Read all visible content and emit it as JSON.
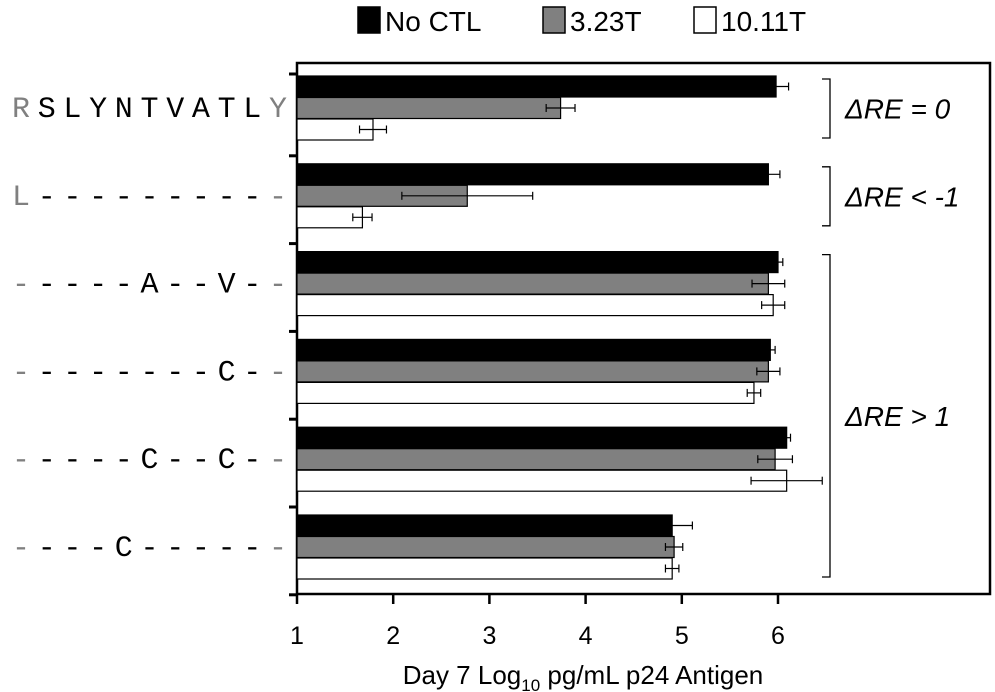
{
  "chart_data": {
    "type": "bar",
    "orientation": "horizontal",
    "xlabel": {
      "prefix": "Day 7 Log",
      "sub": "10",
      "suffix": " pg/mL p24 Antigen"
    },
    "xlim": [
      1,
      8
    ],
    "xticks": [
      "1",
      "2",
      "3",
      "4",
      "5",
      "6"
    ],
    "grid": false,
    "legend_position": "top",
    "series": [
      {
        "name": "No CTL",
        "color": "#000000"
      },
      {
        "name": "3.23T",
        "color": "#808080"
      },
      {
        "name": "10.11T",
        "color": "#ffffff"
      }
    ],
    "categories": [
      {
        "label": [
          {
            "text": "R",
            "color": "#808080"
          },
          {
            "text": "SLYNTVATL",
            "color": "#000000"
          },
          {
            "text": "Y",
            "color": "#808080"
          }
        ],
        "values": [
          5.98,
          3.74,
          1.79
        ],
        "errors": [
          0.13,
          0.15,
          0.14
        ]
      },
      {
        "label": [
          {
            "text": "L",
            "color": "#808080"
          },
          {
            "text": "---------",
            "color": "#000000"
          },
          {
            "text": "-",
            "color": "#808080"
          }
        ],
        "values": [
          5.9,
          2.77,
          1.68
        ],
        "errors": [
          0.12,
          0.68,
          0.1
        ]
      },
      {
        "label": [
          {
            "text": "-",
            "color": "#808080"
          },
          {
            "text": "----A--V-",
            "color": "#000000"
          },
          {
            "text": "-",
            "color": "#808080"
          }
        ],
        "values": [
          6.0,
          5.9,
          5.95
        ],
        "errors": [
          0.05,
          0.17,
          0.12
        ]
      },
      {
        "label": [
          {
            "text": "-",
            "color": "#808080"
          },
          {
            "text": "-------C-",
            "color": "#000000"
          },
          {
            "text": "-",
            "color": "#808080"
          }
        ],
        "values": [
          5.92,
          5.9,
          5.75
        ],
        "errors": [
          0.05,
          0.12,
          0.07
        ]
      },
      {
        "label": [
          {
            "text": "-",
            "color": "#808080"
          },
          {
            "text": "----C--C-",
            "color": "#000000"
          },
          {
            "text": "-",
            "color": "#808080"
          }
        ],
        "values": [
          6.09,
          5.97,
          6.09
        ],
        "errors": [
          0.04,
          0.18,
          0.37
        ]
      },
      {
        "label": [
          {
            "text": "-",
            "color": "#808080"
          },
          {
            "text": "---C-----",
            "color": "#000000"
          },
          {
            "text": "-",
            "color": "#808080"
          }
        ],
        "values": [
          4.9,
          4.92,
          4.9
        ],
        "errors": [
          0.21,
          0.09,
          0.07
        ]
      }
    ],
    "annotations": [
      {
        "text": "ΔRE = 0",
        "from_category": 0,
        "to_category": 0
      },
      {
        "text": "ΔRE < -1",
        "from_category": 1,
        "to_category": 1
      },
      {
        "text": "ΔRE > 1",
        "from_category": 2,
        "to_category": 5
      }
    ]
  }
}
